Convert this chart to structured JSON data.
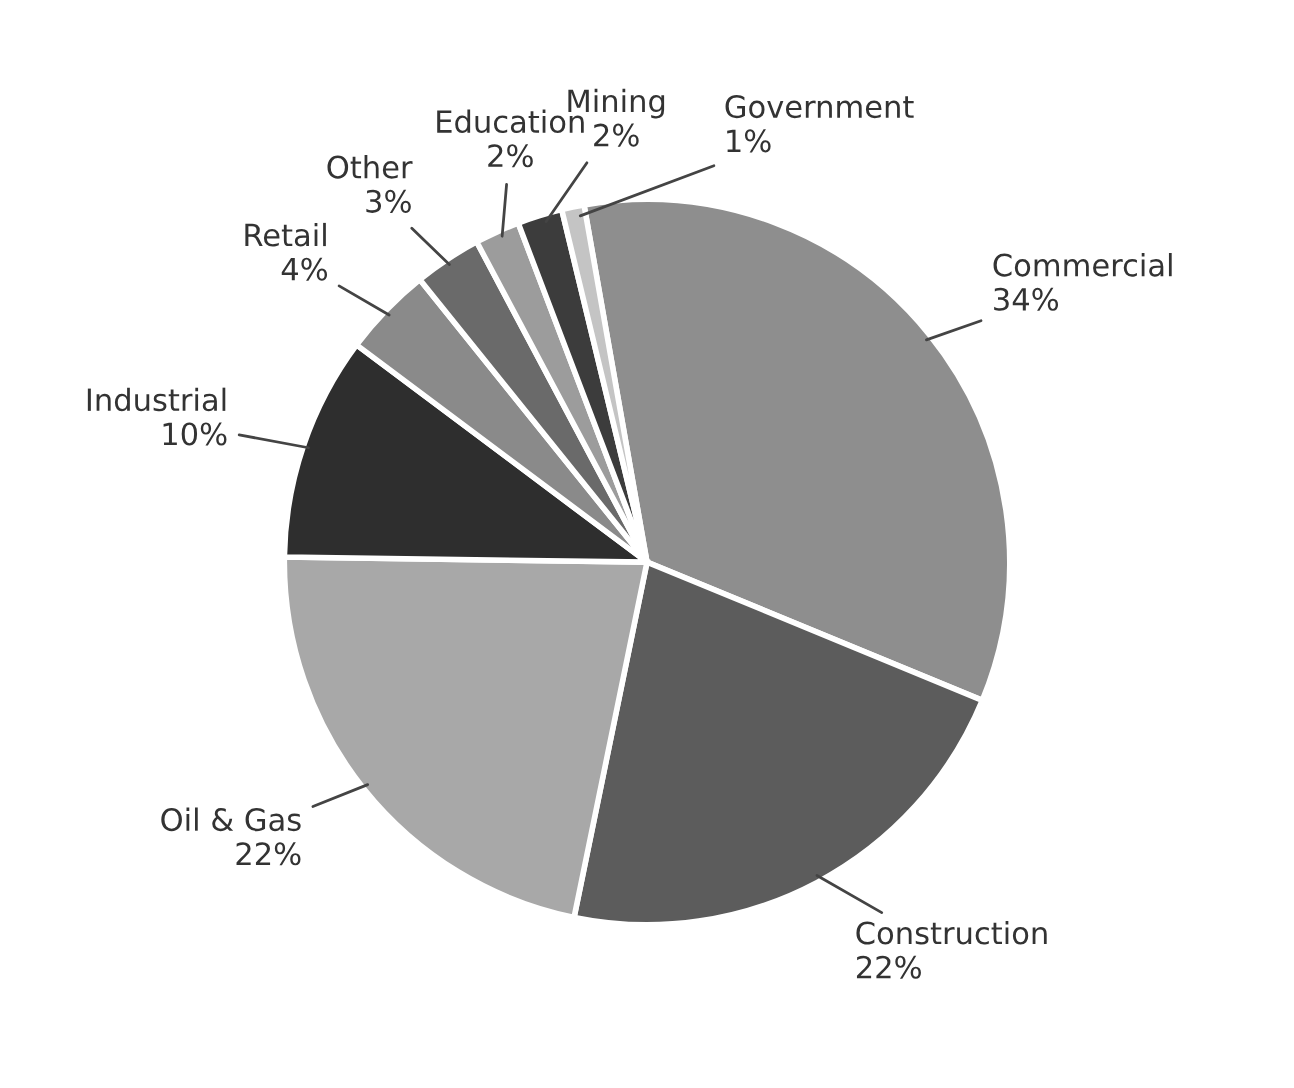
{
  "chart_data": {
    "type": "pie",
    "categories": [
      "Commercial",
      "Construction",
      "Oil & Gas",
      "Industrial",
      "Retail",
      "Other",
      "Education",
      "Mining",
      "Government"
    ],
    "values": [
      34,
      22,
      22,
      10,
      4,
      3,
      2,
      2,
      1
    ],
    "value_labels": [
      "34%",
      "22%",
      "22%",
      "10%",
      "4%",
      "3%",
      "2%",
      "2%",
      "1%"
    ],
    "colors": [
      "#8e8e8e",
      "#5c5c5c",
      "#a8a8a8",
      "#2e2e2e",
      "#8a8a8a",
      "#6a6a6a",
      "#9c9c9c",
      "#3c3c3c",
      "#c4c4c4"
    ]
  }
}
